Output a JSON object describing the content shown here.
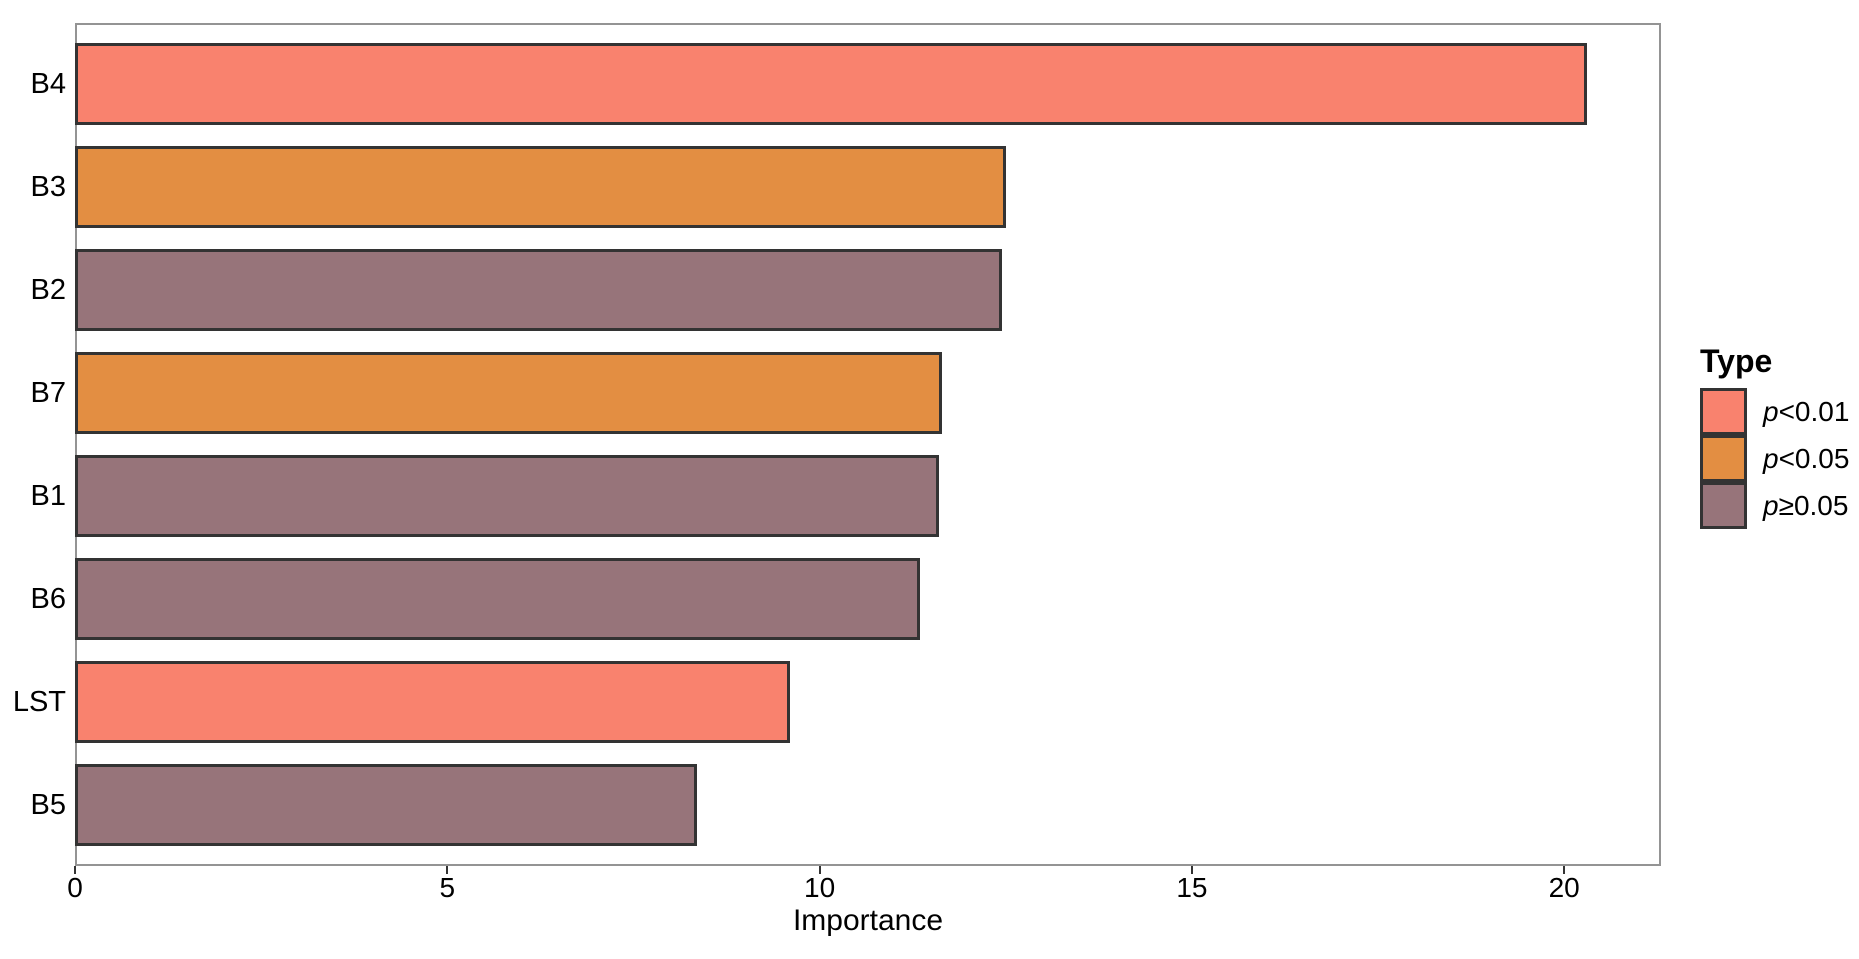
{
  "figure": {
    "xlabel": "Importance",
    "legend": {
      "title": "Type",
      "items": [
        {
          "var": "p",
          "rel": "<0.01",
          "color": "#F9826E"
        },
        {
          "var": "p",
          "rel": "<0.05",
          "color": "#E38E42"
        },
        {
          "var": "p",
          "rel": "≥0.05",
          "color": "#97747A"
        }
      ]
    }
  },
  "chart_data": {
    "type": "bar",
    "orientation": "horizontal",
    "title": "",
    "xlabel": "Importance",
    "ylabel": "",
    "categories": [
      "B4",
      "B3",
      "B2",
      "B7",
      "B1",
      "B6",
      "LST",
      "B5"
    ],
    "values": [
      20.3,
      12.5,
      12.45,
      11.65,
      11.6,
      11.35,
      9.6,
      8.35
    ],
    "groups": [
      "p<0.01",
      "p<0.05",
      "p≥0.05",
      "p<0.05",
      "p≥0.05",
      "p≥0.05",
      "p<0.01",
      "p≥0.05"
    ],
    "palette": {
      "p<0.01": "#F9826E",
      "p<0.05": "#E38E42",
      "p≥0.05": "#97747A"
    },
    "xlim": [
      0,
      21.3
    ],
    "x_ticks": [
      0,
      5,
      10,
      15,
      20
    ],
    "grid": false,
    "legend_position": "right",
    "bar_edge_color": "#333333",
    "panel_border_color": "#949494"
  }
}
